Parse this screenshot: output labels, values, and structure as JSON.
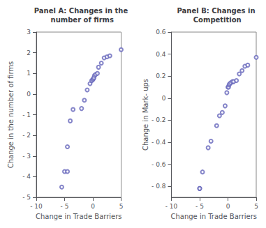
{
  "chart_data": [
    {
      "type": "scatter",
      "title": "Panel A: Changes in the number of firms",
      "xlabel": "Change in Trade Barriers",
      "ylabel": "Change in the number of firms",
      "x": [
        -5.5,
        -5.0,
        -4.5,
        -4.5,
        -4.0,
        -3.5,
        -2.0,
        -1.5,
        -1.0,
        -0.5,
        -0.2,
        0.0,
        0.1,
        0.2,
        0.3,
        0.5,
        0.8,
        1.0,
        1.5,
        2.0,
        2.5,
        3.0,
        5.0
      ],
      "values": [
        -4.5,
        -3.75,
        -2.55,
        -3.75,
        -1.3,
        -0.75,
        -0.7,
        -0.3,
        0.2,
        0.5,
        0.65,
        0.7,
        0.75,
        0.8,
        0.9,
        0.95,
        1.0,
        1.3,
        1.5,
        1.75,
        1.8,
        1.85,
        2.15
      ],
      "xlim": [
        -10,
        5
      ],
      "ylim": [
        -5,
        3
      ],
      "xticks": [
        {
          "value": -10,
          "label": "- 10"
        },
        {
          "value": -5,
          "label": "- 5"
        },
        0,
        5
      ],
      "yticks": [
        {
          "value": -5,
          "label": "- 5"
        },
        {
          "value": -4,
          "label": "- 4"
        },
        {
          "value": -3,
          "label": "- 3"
        },
        {
          "value": -2,
          "label": "- 2"
        },
        {
          "value": -1,
          "label": "- 1"
        },
        0,
        1,
        2,
        3
      ],
      "color": "#6666bb",
      "marker": "circle",
      "grid": false
    },
    {
      "type": "scatter",
      "title": "Panel B: Changes in Competition",
      "xlabel": "Change in Trade Barriers",
      "ylabel": "Change in Mark- ups",
      "x": [
        -5.0,
        -5.0,
        -4.5,
        -3.5,
        -3.0,
        -2.0,
        -1.5,
        -1.0,
        -0.5,
        -0.2,
        0.0,
        0.1,
        0.2,
        0.3,
        0.5,
        0.8,
        1.0,
        1.5,
        2.0,
        2.5,
        3.0,
        3.5,
        5.0
      ],
      "values": [
        -0.82,
        -0.82,
        -0.67,
        -0.45,
        -0.39,
        -0.25,
        -0.16,
        -0.13,
        -0.07,
        0.05,
        0.1,
        0.1,
        0.12,
        0.13,
        0.14,
        0.15,
        0.15,
        0.16,
        0.22,
        0.25,
        0.29,
        0.3,
        0.37
      ],
      "xlim": [
        -10,
        5
      ],
      "ylim": [
        -0.9,
        0.6
      ],
      "xticks": [
        {
          "value": -10,
          "label": "- 10"
        },
        {
          "value": -5,
          "label": "- 5"
        },
        0,
        5
      ],
      "yticks": [
        {
          "value": -0.8,
          "label": "- 0.8"
        },
        {
          "value": -0.6,
          "label": "- 0.6"
        },
        {
          "value": -0.4,
          "label": "- 0.4"
        },
        {
          "value": -0.2,
          "label": "- 0.2"
        },
        0,
        0.2,
        0.4,
        0.6
      ],
      "color": "#6666bb",
      "marker": "circle",
      "grid": false
    }
  ]
}
